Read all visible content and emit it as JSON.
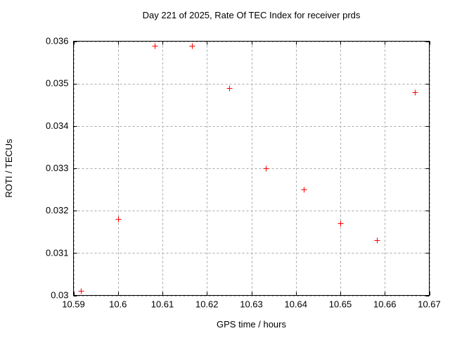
{
  "chart_data": {
    "type": "scatter",
    "title": "Day 221 of 2025, Rate Of TEC Index for receiver prds",
    "xlabel": "GPS time / hours",
    "ylabel": "ROTI / TECUs",
    "xlim": [
      10.59,
      10.67
    ],
    "ylim": [
      0.03,
      0.036
    ],
    "xticks": {
      "values": [
        10.59,
        10.6,
        10.61,
        10.62,
        10.63,
        10.64,
        10.65,
        10.66,
        10.67
      ],
      "labels": [
        "10.59",
        "10.6",
        "10.61",
        "10.62",
        "10.63",
        "10.64",
        "10.65",
        "10.66",
        "10.67"
      ]
    },
    "yticks": {
      "values": [
        0.03,
        0.031,
        0.032,
        0.033,
        0.034,
        0.035,
        0.036
      ],
      "labels": [
        "0.03",
        "0.031",
        "0.032",
        "0.033",
        "0.034",
        "0.035",
        "0.036"
      ]
    },
    "grid": true,
    "legend": "none",
    "series": [
      {
        "marker": "plus",
        "color": "#ff0000",
        "points": [
          [
            10.5917,
            0.0301
          ],
          [
            10.6,
            0.0318
          ],
          [
            10.6083,
            0.0359
          ],
          [
            10.6167,
            0.0359
          ],
          [
            10.625,
            0.0349
          ],
          [
            10.6333,
            0.033
          ],
          [
            10.6417,
            0.0325
          ],
          [
            10.65,
            0.0317
          ],
          [
            10.6583,
            0.0313
          ],
          [
            10.6667,
            0.0348
          ]
        ]
      }
    ],
    "colors": {
      "background": "#ffffff",
      "axis": "#000000",
      "grid": "#aaaaaa",
      "text": "#000000",
      "marker": "#ff0000"
    }
  }
}
